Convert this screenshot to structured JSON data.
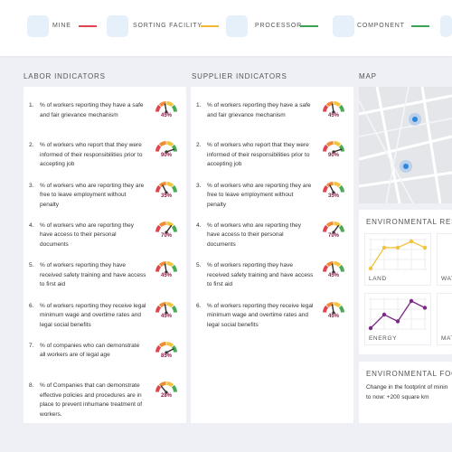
{
  "nav": [
    {
      "label": "MINE",
      "color": "#e0454f"
    },
    {
      "label": "SORTING FACILITY",
      "color": "#f2b731"
    },
    {
      "label": "PROCESSOR",
      "color": "#3aa655"
    },
    {
      "label": "COMPONENT",
      "color": "#3aa655"
    }
  ],
  "labor": {
    "title": "LABOR INDICATORS",
    "items": [
      {
        "num": "1.",
        "text": "% of workers reporting they have a safe and fair grievance mechanism",
        "value": 45,
        "label": "45%"
      },
      {
        "num": "2.",
        "text": "% of workers who report that they were informed of their responsibilities prior to accepting job",
        "value": 90,
        "label": "90%"
      },
      {
        "num": "3.",
        "text": "% of workers who are reporting they are free to leave employment without penalty",
        "value": 35,
        "label": "35%"
      },
      {
        "num": "4.",
        "text": "% of workers who are reporting they have access to their personal documents",
        "value": 70,
        "label": "70%"
      },
      {
        "num": "5.",
        "text": "% of workers reporting they have received safety training and have access to first aid",
        "value": 45,
        "label": "45%"
      },
      {
        "num": "6.",
        "text": "% of workers reporting they receive legal minimum wage and overtime rates and legal social benefits",
        "value": 45,
        "label": "45%"
      },
      {
        "num": "7.",
        "text": "% of companies who can demonstrate all workers are of legal age",
        "value": 85,
        "label": "85%"
      },
      {
        "num": "8.",
        "text": "% of Companies that can demonstrate effective policies and procedures are in place to prevent inhumane treatment of workers.",
        "value": 28,
        "label": "28%"
      }
    ]
  },
  "supplier": {
    "title": "SUPPLIER INDICATORS",
    "items": [
      {
        "num": "1.",
        "text": "% of workers reporting they have a safe and fair grievance mechanism",
        "value": 45,
        "label": "45%"
      },
      {
        "num": "2.",
        "text": "% of workers who report that they were informed of their responsibilities prior to accepting job",
        "value": 90,
        "label": "90%"
      },
      {
        "num": "3.",
        "text": "% of workers who are reporting they are free to leave employment without penalty",
        "value": 35,
        "label": "35%"
      },
      {
        "num": "4.",
        "text": "% of workers who are reporting they have access to their personal documents",
        "value": 70,
        "label": "70%"
      },
      {
        "num": "5.",
        "text": "% of workers reporting they have received safety training and have access to first aid",
        "value": 45,
        "label": "45%"
      },
      {
        "num": "6.",
        "text": "% of workers reporting they receive legal minimum wage and overtime rates and legal social benefits",
        "value": 45,
        "label": "45%"
      }
    ]
  },
  "map": {
    "title": "MAP"
  },
  "resources": {
    "title": "ENVIRONMENTAL RESOURC",
    "charts": [
      {
        "name": "LAND",
        "color": "#f2c43d",
        "values": [
          1,
          3,
          3,
          3.6,
          3
        ]
      },
      {
        "name": "WATE"
      },
      {
        "name": "ENERGY",
        "color": "#7a2a86",
        "values": [
          1,
          1.8,
          1.4,
          2.6,
          2.2
        ]
      },
      {
        "name": "MATE"
      }
    ]
  },
  "footprint": {
    "title": "ENVIRONMENTAL FOOTPRI",
    "lines": [
      "Change in the footprint of minin",
      "to now: +200 square km"
    ]
  }
}
